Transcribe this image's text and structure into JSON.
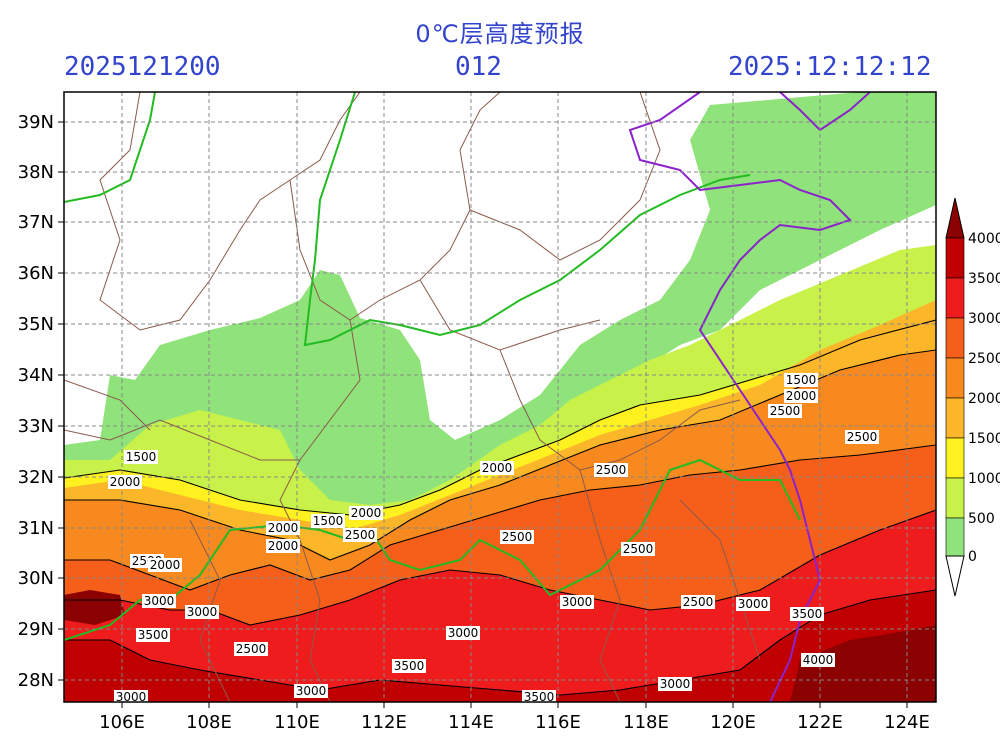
{
  "title": "0℃层高度预报",
  "header": {
    "init_time": "2025121200",
    "forecast_hour": "012",
    "valid_time": "2025:12:12:12"
  },
  "map": {
    "lon_ticks": [
      "106E",
      "108E",
      "110E",
      "112E",
      "114E",
      "116E",
      "118E",
      "120E",
      "122E",
      "124E"
    ],
    "lat_ticks": [
      "39N",
      "38N",
      "37N",
      "36N",
      "35N",
      "34N",
      "33N",
      "32N",
      "31N",
      "30N",
      "29N",
      "28N"
    ]
  },
  "colorbar": {
    "labels": [
      "4000",
      "3500",
      "3000",
      "2500",
      "2000",
      "1500",
      "1000",
      "500",
      "0"
    ],
    "colors": [
      "#8b0000",
      "#c00000",
      "#ee1c1c",
      "#f55f1a",
      "#f7891e",
      "#fbb62a",
      "#fff020",
      "#c8f24a",
      "#8fe37a"
    ]
  },
  "contour_labels": [
    {
      "text": "1500"
    },
    {
      "text": "2000"
    },
    {
      "text": "2500"
    },
    {
      "text": "2000"
    },
    {
      "text": "3000"
    },
    {
      "text": "3000"
    },
    {
      "text": "3500"
    },
    {
      "text": "2500"
    },
    {
      "text": "3000"
    },
    {
      "text": "3000"
    },
    {
      "text": "2000"
    },
    {
      "text": "2000"
    },
    {
      "text": "1500"
    },
    {
      "text": "2000"
    },
    {
      "text": "2500"
    },
    {
      "text": "2000"
    },
    {
      "text": "2500"
    },
    {
      "text": "3000"
    },
    {
      "text": "3500"
    },
    {
      "text": "3500"
    },
    {
      "text": "2500"
    },
    {
      "text": "2500"
    },
    {
      "text": "3000"
    },
    {
      "text": "3000"
    },
    {
      "text": "2500"
    },
    {
      "text": "3000"
    },
    {
      "text": "1500"
    },
    {
      "text": "2000"
    },
    {
      "text": "2500"
    },
    {
      "text": "2500"
    },
    {
      "text": "3500"
    },
    {
      "text": "4000"
    }
  ]
}
